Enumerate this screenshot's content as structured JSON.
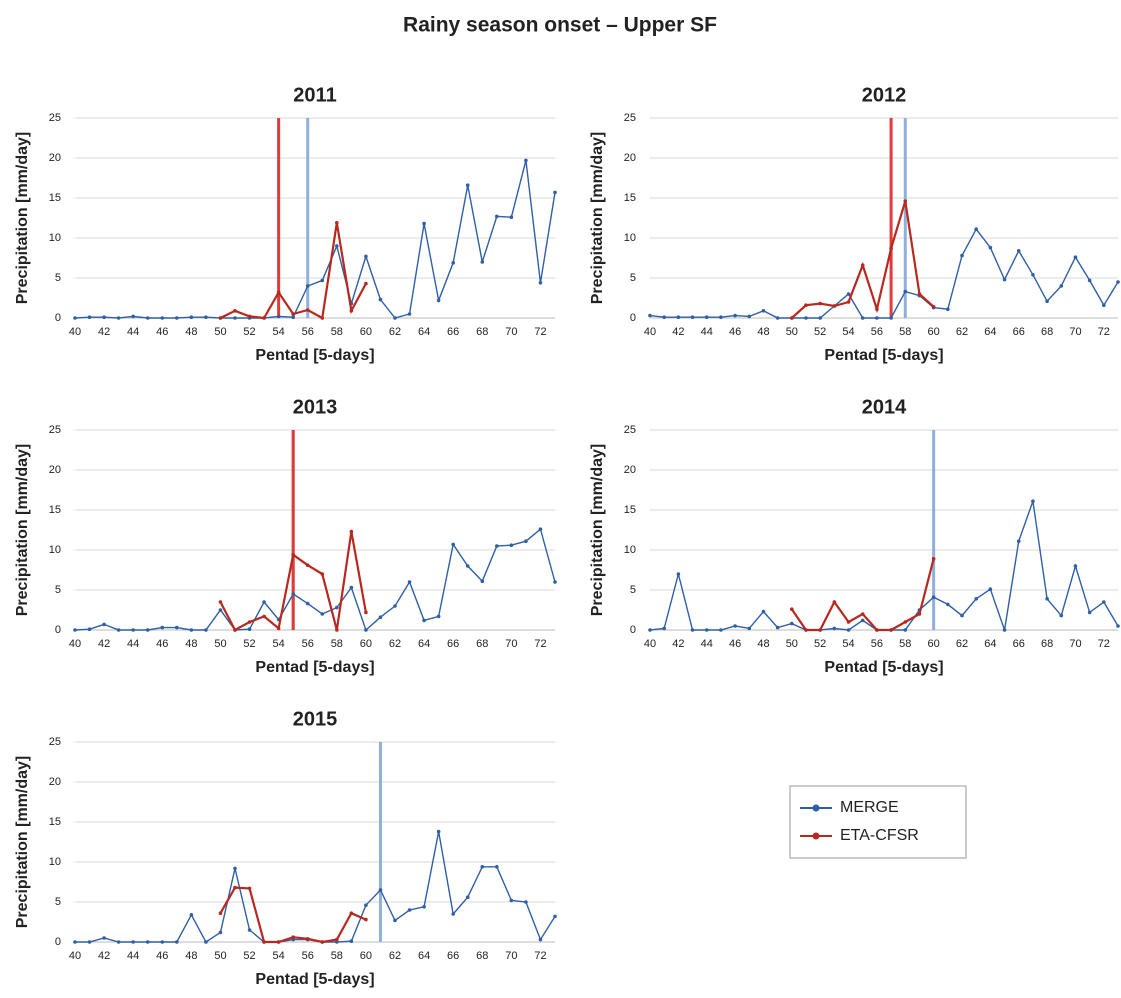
{
  "title": "Rainy season onset – Upper SF",
  "chart_data": [
    {
      "type": "line",
      "title": "2011",
      "xlabel": "Pentad [5-days]",
      "ylabel": "Precipitation [mm/day]",
      "x": [
        40,
        41,
        42,
        43,
        44,
        45,
        46,
        47,
        48,
        49,
        50,
        51,
        52,
        53,
        54,
        55,
        56,
        57,
        58,
        59,
        60,
        61,
        62,
        63,
        64,
        65,
        66,
        67,
        68,
        69,
        70,
        71,
        72,
        73
      ],
      "series": [
        {
          "name": "MERGE",
          "color": "#2f5fa6",
          "values": [
            0,
            0.1,
            0.1,
            0,
            0.2,
            0,
            0,
            0,
            0.1,
            0.1,
            0,
            0,
            0,
            0,
            0.2,
            0.1,
            4,
            4.7,
            9,
            1.8,
            7.7,
            2.3,
            0,
            0.5,
            11.8,
            2.2,
            6.9,
            16.6,
            7,
            12.7,
            12.6,
            19.7,
            4.4,
            15.7
          ]
        },
        {
          "name": "ETA-CFSR",
          "color": "#b8281e",
          "values": [
            null,
            null,
            null,
            null,
            null,
            null,
            null,
            null,
            null,
            null,
            0,
            0.9,
            0.2,
            0,
            3.2,
            0.5,
            1,
            0,
            11.9,
            0.9,
            4.3,
            null,
            null,
            null,
            null,
            null,
            null,
            null,
            null,
            null,
            null,
            null,
            null,
            null
          ]
        }
      ],
      "vlines": [
        {
          "x": 54,
          "color": "#e03a3a"
        },
        {
          "x": 56,
          "color": "#8fb0dd"
        }
      ],
      "xlim": [
        40,
        73
      ],
      "xticks": [
        40,
        42,
        44,
        46,
        48,
        50,
        52,
        54,
        56,
        58,
        60,
        62,
        64,
        66,
        68,
        70,
        72
      ],
      "ylim": [
        0,
        25
      ],
      "yticks": [
        0,
        5,
        10,
        15,
        20,
        25
      ],
      "grid": true
    },
    {
      "type": "line",
      "title": "2012",
      "xlabel": "Pentad [5-days]",
      "ylabel": "Precipitation [mm/day]",
      "x": [
        40,
        41,
        42,
        43,
        44,
        45,
        46,
        47,
        48,
        49,
        50,
        51,
        52,
        53,
        54,
        55,
        56,
        57,
        58,
        59,
        60,
        61,
        62,
        63,
        64,
        65,
        66,
        67,
        68,
        69,
        70,
        71,
        72,
        73
      ],
      "series": [
        {
          "name": "MERGE",
          "color": "#2f5fa6",
          "values": [
            0.3,
            0.1,
            0.1,
            0.1,
            0.1,
            0.1,
            0.3,
            0.2,
            0.9,
            0,
            0,
            0,
            0,
            1.5,
            3,
            0,
            0,
            0,
            3.3,
            2.8,
            1.3,
            1.1,
            7.8,
            11.1,
            8.8,
            4.8,
            8.4,
            5.4,
            2.1,
            4,
            7.6,
            4.7,
            1.6,
            4.5
          ]
        },
        {
          "name": "ETA-CFSR",
          "color": "#b8281e",
          "values": [
            null,
            null,
            null,
            null,
            null,
            null,
            null,
            null,
            null,
            null,
            0,
            1.6,
            1.8,
            1.5,
            2,
            6.6,
            1.1,
            8.7,
            14.6,
            3,
            1.4,
            null,
            null,
            null,
            null,
            null,
            null,
            null,
            null,
            null,
            null,
            null,
            null,
            null
          ]
        }
      ],
      "vlines": [
        {
          "x": 57,
          "color": "#e03a3a"
        },
        {
          "x": 58,
          "color": "#8fb0dd"
        }
      ],
      "xlim": [
        40,
        73
      ],
      "xticks": [
        40,
        42,
        44,
        46,
        48,
        50,
        52,
        54,
        56,
        58,
        60,
        62,
        64,
        66,
        68,
        70,
        72
      ],
      "ylim": [
        0,
        25
      ],
      "yticks": [
        0,
        5,
        10,
        15,
        20,
        25
      ],
      "grid": true
    },
    {
      "type": "line",
      "title": "2013",
      "xlabel": "Pentad [5-days]",
      "ylabel": "Precipitation [mm/day]",
      "x": [
        40,
        41,
        42,
        43,
        44,
        45,
        46,
        47,
        48,
        49,
        50,
        51,
        52,
        53,
        54,
        55,
        56,
        57,
        58,
        59,
        60,
        61,
        62,
        63,
        64,
        65,
        66,
        67,
        68,
        69,
        70,
        71,
        72,
        73
      ],
      "series": [
        {
          "name": "MERGE",
          "color": "#2f5fa6",
          "values": [
            0,
            0.1,
            0.7,
            0,
            0,
            0,
            0.3,
            0.3,
            0,
            0,
            2.5,
            0,
            0.1,
            3.5,
            1.3,
            4.5,
            3.3,
            2,
            2.8,
            5.3,
            0,
            1.6,
            3,
            6,
            1.2,
            1.7,
            10.7,
            8,
            6.1,
            10.5,
            10.6,
            11.1,
            12.6,
            6
          ]
        },
        {
          "name": "ETA-CFSR",
          "color": "#b8281e",
          "values": [
            null,
            null,
            null,
            null,
            null,
            null,
            null,
            null,
            null,
            null,
            3.5,
            0,
            1,
            1.7,
            0.2,
            9.4,
            8.1,
            7,
            0,
            12.3,
            2.2,
            null,
            null,
            null,
            null,
            null,
            null,
            null,
            null,
            null,
            null,
            null,
            null,
            null
          ]
        }
      ],
      "vlines": [
        {
          "x": 55,
          "color": "#8fb0dd"
        },
        {
          "x": 55,
          "color": "#e03a3a"
        }
      ],
      "xlim": [
        40,
        73
      ],
      "xticks": [
        40,
        42,
        44,
        46,
        48,
        50,
        52,
        54,
        56,
        58,
        60,
        62,
        64,
        66,
        68,
        70,
        72
      ],
      "ylim": [
        0,
        25
      ],
      "yticks": [
        0,
        5,
        10,
        15,
        20,
        25
      ],
      "grid": true
    },
    {
      "type": "line",
      "title": "2014",
      "xlabel": "Pentad [5-days]",
      "ylabel": "Precipitation [mm/day]",
      "x": [
        40,
        41,
        42,
        43,
        44,
        45,
        46,
        47,
        48,
        49,
        50,
        51,
        52,
        53,
        54,
        55,
        56,
        57,
        58,
        59,
        60,
        61,
        62,
        63,
        64,
        65,
        66,
        67,
        68,
        69,
        70,
        71,
        72,
        73
      ],
      "series": [
        {
          "name": "MERGE",
          "color": "#2f5fa6",
          "values": [
            0,
            0.2,
            7,
            0,
            0,
            0,
            0.5,
            0.2,
            2.3,
            0.3,
            0.8,
            0,
            0,
            0.2,
            0,
            1.2,
            0,
            0,
            0,
            2.5,
            4.1,
            3.2,
            1.8,
            3.9,
            5.1,
            0,
            11.1,
            16.1,
            3.9,
            1.8,
            8,
            2.2,
            3.5,
            0.5
          ]
        },
        {
          "name": "ETA-CFSR",
          "color": "#b8281e",
          "values": [
            null,
            null,
            null,
            null,
            null,
            null,
            null,
            null,
            null,
            null,
            2.6,
            0,
            0,
            3.5,
            1,
            2,
            0,
            0,
            1,
            2,
            8.9,
            null,
            null,
            null,
            null,
            null,
            null,
            null,
            null,
            null,
            null,
            null,
            null,
            null
          ]
        }
      ],
      "vlines": [
        {
          "x": 60,
          "color": "#8fb0dd"
        }
      ],
      "xlim": [
        40,
        73
      ],
      "xticks": [
        40,
        42,
        44,
        46,
        48,
        50,
        52,
        54,
        56,
        58,
        60,
        62,
        64,
        66,
        68,
        70,
        72
      ],
      "ylim": [
        0,
        25
      ],
      "yticks": [
        0,
        5,
        10,
        15,
        20,
        25
      ],
      "grid": true
    },
    {
      "type": "line",
      "title": "2015",
      "xlabel": "Pentad [5-days]",
      "ylabel": "Precipitation [mm/day]",
      "x": [
        40,
        41,
        42,
        43,
        44,
        45,
        46,
        47,
        48,
        49,
        50,
        51,
        52,
        53,
        54,
        55,
        56,
        57,
        58,
        59,
        60,
        61,
        62,
        63,
        64,
        65,
        66,
        67,
        68,
        69,
        70,
        71,
        72,
        73
      ],
      "series": [
        {
          "name": "MERGE",
          "color": "#2f5fa6",
          "values": [
            0,
            0,
            0.5,
            0,
            0,
            0,
            0,
            0,
            3.4,
            0,
            1.2,
            9.2,
            1.5,
            0,
            0,
            0.3,
            0.3,
            0,
            0,
            0.1,
            4.6,
            6.5,
            2.7,
            4,
            4.4,
            13.8,
            3.5,
            5.6,
            9.4,
            9.4,
            5.2,
            5,
            0.3,
            3.2
          ]
        },
        {
          "name": "ETA-CFSR",
          "color": "#b8281e",
          "values": [
            null,
            null,
            null,
            null,
            null,
            null,
            null,
            null,
            null,
            null,
            3.6,
            6.8,
            6.7,
            0,
            0,
            0.6,
            0.4,
            0,
            0.3,
            3.6,
            2.8,
            null,
            null,
            null,
            null,
            null,
            null,
            null,
            null,
            null,
            null,
            null,
            null,
            null
          ]
        }
      ],
      "vlines": [
        {
          "x": 61,
          "color": "#8fb0dd"
        }
      ],
      "xlim": [
        40,
        73
      ],
      "xticks": [
        40,
        42,
        44,
        46,
        48,
        50,
        52,
        54,
        56,
        58,
        60,
        62,
        64,
        66,
        68,
        70,
        72
      ],
      "ylim": [
        0,
        25
      ],
      "yticks": [
        0,
        5,
        10,
        15,
        20,
        25
      ],
      "grid": true
    }
  ]
}
